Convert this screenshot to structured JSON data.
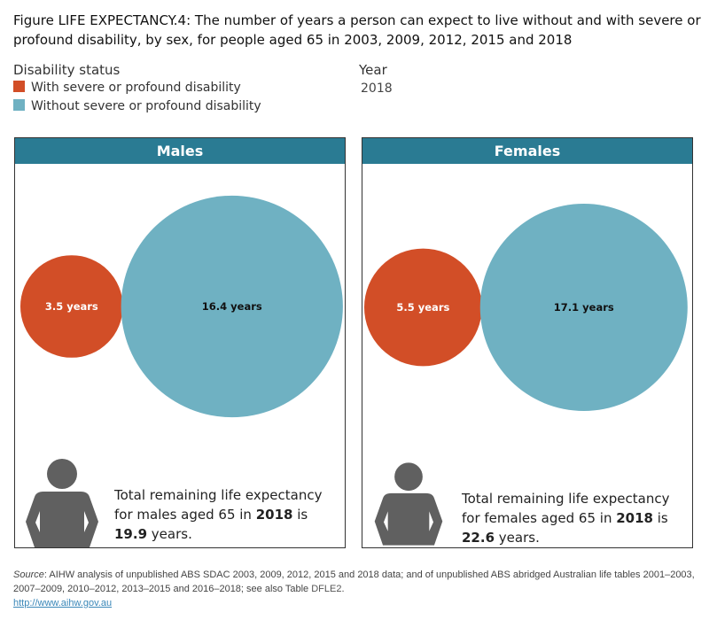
{
  "title": "Figure LIFE EXPECTANCY.4: The number of years a person can expect to live without and with severe or profound disability, by sex, for people aged 65 in 2003, 2009, 2012, 2015 and 2018",
  "legend": {
    "title": "Disability status",
    "items": [
      {
        "label": "With severe or profound disability",
        "color": "#d24e27"
      },
      {
        "label": "Without severe or profound disability",
        "color": "#6fb1c2"
      }
    ]
  },
  "year_filter": {
    "label": "Year",
    "value": "2018"
  },
  "chart_data": [
    {
      "type": "bubble",
      "title": "Males",
      "categories": [
        "With severe or profound disability",
        "Without severe or profound disability"
      ],
      "values": [
        3.5,
        16.4
      ],
      "labels": [
        "3.5 years",
        "16.4 years"
      ],
      "summary": {
        "pre": "Total remaining life expectancy for males aged 65 in ",
        "year": "2018",
        "mid": " is ",
        "total": "19.9",
        "post": " years."
      }
    },
    {
      "type": "bubble",
      "title": "Females",
      "categories": [
        "With severe or profound disability",
        "Without severe or profound disability"
      ],
      "values": [
        5.5,
        17.1
      ],
      "labels": [
        "5.5 years",
        "17.1 years"
      ],
      "summary": {
        "pre": "Total remaining life expectancy for females aged 65 in ",
        "year": "2018",
        "mid": " is ",
        "total": "22.6",
        "post": " years."
      }
    }
  ],
  "colors": {
    "header": "#2a7b93",
    "icon": "#606060"
  },
  "source": {
    "label": "Source",
    "text": ": AIHW analysis of unpublished ABS SDAC 2003, 2009, 2012, 2015 and 2018 data; and of unpublished ABS abridged Australian life tables 2001–2003, 2007–2009, 2010–2012, 2013–2015 and 2016–2018; see also Table ",
    "table": "DFLE2",
    "end": ".",
    "url": "http://www.aihw.gov.au"
  }
}
